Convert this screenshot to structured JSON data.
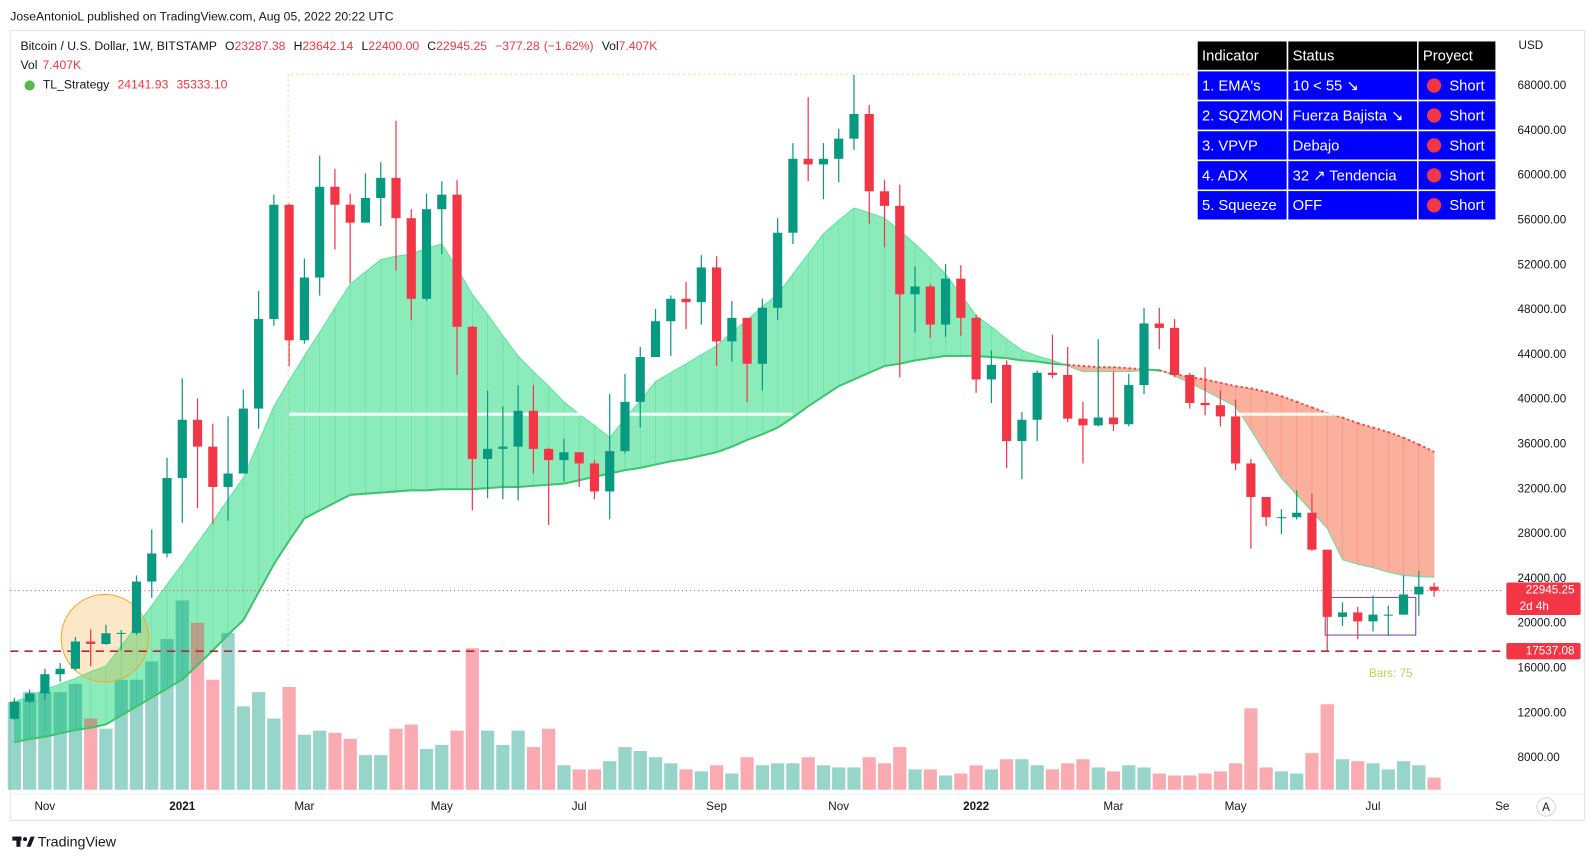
{
  "header": {
    "publisher": "JoseAntonioL published on TradingView.com, Aug 05, 2022 20:22 UTC"
  },
  "footer": {
    "brand": "TradingView"
  },
  "table": {
    "headers": [
      "Indicator",
      "Status",
      "Proyect"
    ],
    "rows": [
      [
        "1. EMA's",
        "10 < 55 ↘",
        "Short"
      ],
      [
        "2. SQZMON",
        "Fuerza Bajista ↘",
        "Short"
      ],
      [
        "3. VPVP",
        "Debajo",
        "Short"
      ],
      [
        "4. ADX",
        "32 ↗ Tendencia",
        "Short"
      ],
      [
        "5. Squeeze",
        "OFF",
        "Short"
      ]
    ]
  },
  "chart_data": {
    "type": "candlestick",
    "symbol": "Bitcoin / U.S. Dollar, 1W, BITSTAMP",
    "legend_keys": {
      "open": "O",
      "high": "H",
      "low": "L",
      "close": "C",
      "volume": "Vol"
    },
    "last_bar_labels": {
      "open": "23287.38",
      "high": "23642.14",
      "low": "22400.00",
      "close": "22945.25",
      "change": "−377.28",
      "change_pct": "(−1.62%)",
      "volume": "7.407K"
    },
    "countdown": "2d 4h",
    "currency": "USD",
    "bars_label": "Bars: 75",
    "auto_scale_button": "A",
    "x_partial_label": "Se",
    "up_color": "#089981",
    "down_color": "#f23645",
    "categories": [
      null,
      null,
      "Nov",
      null,
      null,
      null,
      null,
      null,
      null,
      null,
      null,
      "2021",
      null,
      null,
      null,
      null,
      null,
      null,
      null,
      "Mar",
      null,
      null,
      null,
      null,
      null,
      null,
      null,
      null,
      "May",
      null,
      null,
      null,
      null,
      null,
      null,
      null,
      null,
      "Jul",
      null,
      null,
      null,
      null,
      null,
      null,
      null,
      null,
      "Sep",
      null,
      null,
      null,
      null,
      null,
      null,
      null,
      "Nov",
      null,
      null,
      null,
      null,
      null,
      null,
      null,
      null,
      "2022",
      null,
      null,
      null,
      null,
      null,
      null,
      null,
      null,
      "Mar",
      null,
      null,
      null,
      null,
      null,
      null,
      null,
      "May",
      null,
      null,
      null,
      null,
      null,
      null,
      null,
      null,
      "Jul",
      null,
      null,
      null,
      null
    ],
    "open": [
      11500,
      13030,
      13770,
      15480,
      15970,
      18400,
      18180,
      19140,
      19170,
      23750,
      26260,
      33000,
      38200,
      35800,
      32200,
      33400,
      39200,
      47200,
      57400,
      45300,
      50900,
      59000,
      57400,
      55800,
      58000,
      59800,
      56200,
      49000,
      57000,
      58300,
      46500,
      34700,
      35600,
      35800,
      39000,
      35600,
      34600,
      35300,
      34300,
      31800,
      35400,
      39800,
      43800,
      47000,
      49000,
      48700,
      51800,
      45200,
      47300,
      43200,
      48200,
      54900,
      61500,
      61000,
      61500,
      63300,
      65500,
      58600,
      57300,
      49400,
      50100,
      46700,
      50800,
      47300,
      41800,
      43100,
      36300,
      38200,
      42400,
      42200,
      38300,
      37700,
      38400,
      37800,
      41300,
      46800,
      46400,
      42200,
      39700,
      39500,
      38500,
      34300,
      31300,
      29500,
      29500,
      29900,
      26600,
      20600,
      21000,
      20200,
      20800,
      20800,
      22600,
      23287.38
    ],
    "high": [
      13350,
      14100,
      15970,
      16480,
      18800,
      19480,
      19900,
      19430,
      24300,
      28400,
      34800,
      41900,
      40100,
      37850,
      38500,
      40900,
      49700,
      58300,
      57500,
      52600,
      61800,
      60600,
      58400,
      60200,
      61200,
      64900,
      57000,
      58400,
      59500,
      59600,
      46600,
      40800,
      39400,
      41300,
      41300,
      35700,
      36500,
      35300,
      34600,
      40500,
      42300,
      44700,
      48100,
      49300,
      50500,
      52900,
      52800,
      48800,
      47300,
      49000,
      56200,
      62900,
      67000,
      62900,
      64200,
      69000,
      66300,
      59600,
      59200,
      51900,
      50300,
      52100,
      52000,
      47600,
      44400,
      43500,
      38900,
      42600,
      45800,
      44700,
      39800,
      45400,
      42500,
      42300,
      48200,
      48200,
      47200,
      42400,
      42900,
      40800,
      40000,
      34700,
      31300,
      30200,
      31900,
      31600,
      26600,
      21900,
      21500,
      22500,
      21600,
      24300,
      24700,
      23642.14
    ],
    "low": [
      11400,
      12900,
      13200,
      14800,
      15800,
      16200,
      18100,
      17600,
      19000,
      22300,
      25900,
      29000,
      30300,
      28900,
      29200,
      33400,
      37400,
      46600,
      43000,
      45000,
      49300,
      53400,
      50400,
      55800,
      55500,
      51500,
      47100,
      48800,
      53000,
      42200,
      30100,
      31200,
      31100,
      31000,
      33400,
      28800,
      32700,
      32200,
      31100,
      29300,
      35200,
      37500,
      43800,
      43900,
      46300,
      46700,
      43000,
      43400,
      39800,
      40800,
      47100,
      53900,
      59500,
      57900,
      59400,
      62300,
      55700,
      53600,
      42000,
      46000,
      45500,
      45600,
      45700,
      40600,
      39700,
      33900,
      32900,
      36300,
      41900,
      38000,
      34300,
      37600,
      37200,
      37600,
      40500,
      44500,
      42000,
      39200,
      38600,
      37600,
      33700,
      26700,
      28700,
      28000,
      29300,
      26500,
      17600,
      19800,
      18600,
      19300,
      18900,
      20800,
      20700,
      22400
    ],
    "close": [
      13030,
      13770,
      15480,
      15970,
      18400,
      18180,
      19140,
      19170,
      23750,
      26260,
      33000,
      38200,
      35800,
      32200,
      33400,
      39200,
      47200,
      57400,
      45300,
      50900,
      59000,
      57400,
      55800,
      58000,
      59800,
      56200,
      49000,
      57000,
      58300,
      46500,
      34700,
      35600,
      35800,
      39000,
      35600,
      34600,
      35300,
      34300,
      31800,
      35400,
      39800,
      43800,
      47000,
      49000,
      48700,
      51800,
      45200,
      47300,
      43200,
      48200,
      54900,
      61500,
      61000,
      61500,
      63300,
      65500,
      58600,
      57300,
      49400,
      50100,
      46700,
      50800,
      47300,
      41800,
      43100,
      36300,
      38200,
      42400,
      42200,
      38300,
      37700,
      38400,
      37800,
      41300,
      46800,
      46400,
      42200,
      39700,
      39500,
      38500,
      34300,
      31300,
      29500,
      29500,
      29900,
      26600,
      20600,
      21000,
      20200,
      20800,
      20800,
      22600,
      23300,
      22945.25
    ],
    "volume": [
      53300,
      59500,
      59500,
      59500,
      64500,
      43400,
      37200,
      67000,
      67000,
      78100,
      91800,
      115300,
      101700,
      67000,
      95500,
      50800,
      59500,
      43400,
      62600,
      33500,
      36000,
      34700,
      31000,
      21100,
      21100,
      37200,
      39700,
      24800,
      27300,
      36000,
      86200,
      36000,
      27300,
      36000,
      26000,
      37200,
      14900,
      12400,
      12400,
      17400,
      26000,
      23600,
      19800,
      16100,
      12400,
      11200,
      14900,
      9900,
      19800,
      14900,
      16100,
      16100,
      19800,
      14900,
      13600,
      13600,
      19800,
      16100,
      26000,
      12400,
      12400,
      8700,
      9900,
      14900,
      12400,
      18600,
      18600,
      14900,
      12400,
      16100,
      18600,
      13600,
      11200,
      14900,
      13600,
      9900,
      8700,
      8700,
      9900,
      11200,
      16100,
      49600,
      13600,
      11200,
      9900,
      22300,
      52100,
      18600,
      17400,
      16100,
      12400,
      17400,
      14900,
      7407
    ],
    "indicator": {
      "name": "TL_Strategy",
      "value_labels": [
        "24141.93",
        "35333.10"
      ],
      "bull_color": "#5fe3a1",
      "bear_color": "#f99178",
      "bull_line_color": "#3ec46d",
      "bear_line_color": "#e8464f",
      "fast": [
        13000,
        13500,
        14100,
        14600,
        15100,
        15700,
        16200,
        18000,
        19800,
        21600,
        23500,
        25300,
        27200,
        29100,
        31100,
        33000,
        36200,
        39400,
        41700,
        43900,
        46000,
        48200,
        50300,
        51400,
        52500,
        52800,
        53000,
        53500,
        53900,
        51700,
        49400,
        47600,
        45700,
        43900,
        42500,
        41200,
        39800,
        38700,
        37700,
        36600,
        38300,
        39900,
        41600,
        42400,
        43200,
        44000,
        44800,
        46000,
        47100,
        48300,
        49400,
        51200,
        53000,
        54800,
        56000,
        57100,
        56700,
        56200,
        55100,
        53900,
        52600,
        51200,
        49400,
        47500,
        46500,
        45400,
        44400,
        43900,
        43500,
        43000,
        42500,
        42500,
        42500,
        42500,
        42600,
        42700,
        42100,
        41500,
        40800,
        40100,
        39400,
        37300,
        35100,
        33000,
        31500,
        30000,
        28500,
        25700,
        25300,
        25000,
        24600,
        24300,
        24200,
        24141.93
      ],
      "slow": [
        9400,
        9700,
        9900,
        10200,
        10500,
        10700,
        11000,
        11800,
        12600,
        13400,
        14200,
        15000,
        16300,
        17600,
        19000,
        20300,
        22800,
        25300,
        27400,
        29400,
        30100,
        30800,
        31500,
        31600,
        31700,
        31800,
        31900,
        31900,
        32000,
        32000,
        32000,
        32100,
        32200,
        32200,
        32300,
        32400,
        32500,
        32800,
        33100,
        33400,
        33700,
        33900,
        34200,
        34500,
        34700,
        35000,
        35300,
        35800,
        36400,
        36900,
        37500,
        38400,
        39400,
        40300,
        41200,
        41800,
        42400,
        43000,
        43200,
        43500,
        43700,
        43900,
        43900,
        43900,
        43800,
        43700,
        43500,
        43400,
        43200,
        43100,
        43000,
        42900,
        42900,
        42800,
        42700,
        42600,
        42300,
        42000,
        41800,
        41500,
        41200,
        41000,
        40700,
        40300,
        39800,
        39300,
        38800,
        38400,
        37900,
        37500,
        37100,
        36600,
        36000,
        35333.1
      ]
    },
    "level_line": {
      "value": 38700,
      "spans": [
        [
          18,
          51
        ],
        [
          80,
          87
        ]
      ]
    },
    "support_line": {
      "value": 17537.08,
      "label": "17537.08"
    },
    "ylim": [
      4800,
      72500
    ],
    "yticks": [
      {
        "value": 68000,
        "label": "68000.00"
      },
      {
        "value": 64000,
        "label": "64000.00"
      },
      {
        "value": 60000,
        "label": "60000.00"
      },
      {
        "value": 56000,
        "label": "56000.00"
      },
      {
        "value": 52000,
        "label": "52000.00"
      },
      {
        "value": 48000,
        "label": "48000.00"
      },
      {
        "value": 44000,
        "label": "44000.00"
      },
      {
        "value": 40000,
        "label": "40000.00"
      },
      {
        "value": 36000,
        "label": "36000.00"
      },
      {
        "value": 32000,
        "label": "32000.00"
      },
      {
        "value": 28000,
        "label": "28000.00"
      },
      {
        "value": 24000,
        "label": "24000.00"
      },
      {
        "value": 20000,
        "label": "20000.00"
      },
      {
        "value": 16000,
        "label": "16000.00"
      },
      {
        "value": 12000,
        "label": "12000.00"
      },
      {
        "value": 8000,
        "label": "8000.00"
      }
    ],
    "grid": false
  }
}
